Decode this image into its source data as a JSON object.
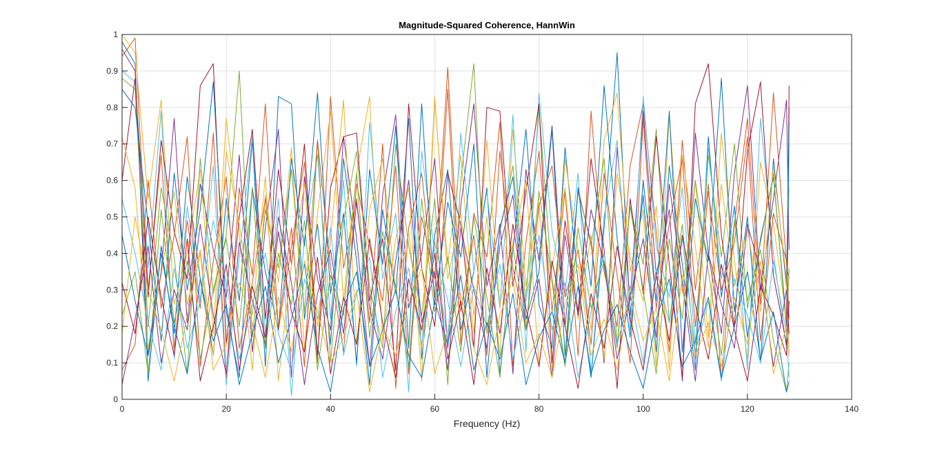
{
  "chart_data": {
    "type": "line",
    "title": "Magnitude-Squared Coherence, HannWin",
    "xlabel": "Frequency (Hz)",
    "ylabel": "",
    "xlim": [
      0,
      140
    ],
    "ylim": [
      0,
      1
    ],
    "grid": true,
    "legend": "none",
    "x_ticks": [
      0,
      20,
      40,
      60,
      80,
      100,
      120,
      140
    ],
    "y_ticks": [
      0,
      0.1,
      0.2,
      0.3,
      0.4,
      0.5,
      0.6,
      0.7,
      0.8,
      0.9,
      1
    ],
    "x_tick_labels": [
      "0",
      "20",
      "40",
      "60",
      "80",
      "100",
      "120",
      "140"
    ],
    "y_tick_labels": [
      "0",
      "0.1",
      "0.2",
      "0.3",
      "0.4",
      "0.5",
      "0.6",
      "0.7",
      "0.8",
      "0.9",
      "1"
    ],
    "x": [
      0,
      2.5,
      5,
      7.5,
      10,
      12.5,
      15,
      17.5,
      20,
      22.5,
      25,
      27.5,
      30,
      32.5,
      35,
      37.5,
      40,
      42.5,
      45,
      47.5,
      50,
      52.5,
      55,
      57.5,
      60,
      62.5,
      65,
      67.5,
      70,
      72.5,
      75,
      77.5,
      80,
      82.5,
      85,
      87.5,
      90,
      92.5,
      95,
      97.5,
      100,
      102.5,
      105,
      107.5,
      110,
      112.5,
      115,
      117.5,
      120,
      122.5,
      125,
      127.5,
      128
    ],
    "series": [
      {
        "color": "#0072BD",
        "values": [
          0.98,
          0.92,
          0.05,
          0.42,
          0.18,
          0.61,
          0.33,
          0.12,
          0.55,
          0.27,
          0.71,
          0.09,
          0.83,
          0.81,
          0.22,
          0.48,
          0.15,
          0.66,
          0.38,
          0.04,
          0.52,
          0.29,
          0.77,
          0.11,
          0.45,
          0.63,
          0.19,
          0.35,
          0.58,
          0.07,
          0.41,
          0.74,
          0.26,
          0.14,
          0.69,
          0.32,
          0.06,
          0.47,
          0.95,
          0.23,
          0.56,
          0.13,
          0.64,
          0.37,
          0.08,
          0.72,
          0.28,
          0.53,
          0.17,
          0.44,
          0.61,
          0.21,
          0.8
        ]
      },
      {
        "color": "#D95319",
        "values": [
          0.94,
          0.99,
          0.3,
          0.67,
          0.14,
          0.49,
          0.25,
          0.73,
          0.06,
          0.58,
          0.34,
          0.81,
          0.19,
          0.42,
          0.65,
          0.1,
          0.83,
          0.36,
          0.55,
          0.21,
          0.7,
          0.03,
          0.47,
          0.62,
          0.28,
          0.85,
          0.15,
          0.51,
          0.39,
          0.76,
          0.09,
          0.43,
          0.68,
          0.24,
          0.57,
          0.12,
          0.79,
          0.35,
          0.2,
          0.64,
          0.81,
          0.46,
          0.13,
          0.71,
          0.3,
          0.59,
          0.05,
          0.48,
          0.77,
          0.26,
          0.84,
          0.37,
          0.33
        ]
      },
      {
        "color": "#EDB120",
        "values": [
          1.0,
          0.95,
          0.55,
          0.82,
          0.26,
          0.4,
          0.63,
          0.18,
          0.77,
          0.45,
          0.08,
          0.56,
          0.32,
          0.69,
          0.14,
          0.51,
          0.79,
          0.27,
          0.62,
          0.83,
          0.16,
          0.44,
          0.58,
          0.05,
          0.82,
          0.37,
          0.67,
          0.23,
          0.5,
          0.12,
          0.74,
          0.31,
          0.54,
          0.08,
          0.66,
          0.41,
          0.19,
          0.71,
          0.84,
          0.35,
          0.52,
          0.09,
          0.78,
          0.29,
          0.6,
          0.17,
          0.73,
          0.38,
          0.11,
          0.65,
          0.48,
          0.22,
          0.58
        ]
      },
      {
        "color": "#7E2F8E",
        "values": [
          0.96,
          0.9,
          0.12,
          0.35,
          0.77,
          0.21,
          0.59,
          0.41,
          0.28,
          0.67,
          0.13,
          0.47,
          0.74,
          0.06,
          0.61,
          0.33,
          0.19,
          0.72,
          0.44,
          0.09,
          0.56,
          0.78,
          0.25,
          0.4,
          0.66,
          0.14,
          0.53,
          0.81,
          0.31,
          0.48,
          0.07,
          0.63,
          0.38,
          0.75,
          0.2,
          0.57,
          0.43,
          0.1,
          0.69,
          0.27,
          0.79,
          0.34,
          0.52,
          0.05,
          0.73,
          0.4,
          0.18,
          0.62,
          0.86,
          0.3,
          0.55,
          0.82,
          0.41
        ]
      },
      {
        "color": "#77AC30",
        "values": [
          0.88,
          0.85,
          0.2,
          0.58,
          0.39,
          0.07,
          0.66,
          0.29,
          0.45,
          0.9,
          0.17,
          0.52,
          0.36,
          0.63,
          0.24,
          0.71,
          0.1,
          0.49,
          0.68,
          0.31,
          0.14,
          0.7,
          0.42,
          0.23,
          0.55,
          0.04,
          0.6,
          0.92,
          0.18,
          0.46,
          0.64,
          0.27,
          0.8,
          0.32,
          0.09,
          0.58,
          0.42,
          0.66,
          0.15,
          0.53,
          0.37,
          0.74,
          0.21,
          0.48,
          0.11,
          0.67,
          0.39,
          0.7,
          0.25,
          0.43,
          0.62,
          0.19,
          0.36
        ]
      },
      {
        "color": "#4DBEEE",
        "values": [
          0.9,
          0.87,
          0.36,
          0.79,
          0.11,
          0.53,
          0.27,
          0.64,
          0.04,
          0.39,
          0.72,
          0.18,
          0.55,
          0.01,
          0.44,
          0.67,
          0.22,
          0.6,
          0.09,
          0.76,
          0.33,
          0.51,
          0.02,
          0.68,
          0.4,
          0.16,
          0.73,
          0.35,
          0.57,
          0.25,
          0.78,
          0.13,
          0.84,
          0.46,
          0.29,
          0.62,
          0.07,
          0.5,
          0.71,
          0.19,
          0.83,
          0.42,
          0.28,
          0.58,
          0.15,
          0.69,
          0.33,
          0.52,
          0.08,
          0.77,
          0.4,
          0.14,
          0.7
        ]
      },
      {
        "color": "#A2142F",
        "values": [
          0.6,
          0.88,
          0.28,
          0.71,
          0.46,
          0.33,
          0.86,
          0.92,
          0.15,
          0.5,
          0.74,
          0.22,
          0.63,
          0.37,
          0.7,
          0.12,
          0.58,
          0.72,
          0.73,
          0.27,
          0.44,
          0.08,
          0.81,
          0.36,
          0.2,
          0.62,
          0.48,
          0.14,
          0.8,
          0.79,
          0.31,
          0.57,
          0.81,
          0.1,
          0.49,
          0.24,
          0.66,
          0.41,
          0.03,
          0.55,
          0.29,
          0.72,
          0.37,
          0.06,
          0.81,
          0.92,
          0.45,
          0.2,
          0.68,
          0.87,
          0.34,
          0.15,
          0.86
        ]
      },
      {
        "color": "#0072BD",
        "values": [
          0.85,
          0.8,
          0.48,
          0.16,
          0.62,
          0.3,
          0.52,
          0.87,
          0.24,
          0.06,
          0.58,
          0.35,
          0.19,
          0.66,
          0.42,
          0.84,
          0.29,
          0.51,
          0.1,
          0.63,
          0.37,
          0.75,
          0.14,
          0.81,
          0.26,
          0.54,
          0.39,
          0.7,
          0.06,
          0.47,
          0.61,
          0.22,
          0.35,
          0.74,
          0.12,
          0.58,
          0.31,
          0.86,
          0.44,
          0.17,
          0.6,
          0.27,
          0.79,
          0.13,
          0.55,
          0.38,
          0.88,
          0.24,
          0.5,
          0.1,
          0.66,
          0.31,
          0.76
        ]
      },
      {
        "color": "#D95319",
        "values": [
          0.08,
          0.15,
          0.6,
          0.25,
          0.45,
          0.72,
          0.09,
          0.38,
          0.61,
          0.14,
          0.32,
          0.55,
          0.2,
          0.47,
          0.09,
          0.71,
          0.36,
          0.13,
          0.59,
          0.42,
          0.27,
          0.64,
          0.07,
          0.5,
          0.33,
          0.91,
          0.24,
          0.45,
          0.12,
          0.68,
          0.36,
          0.19,
          0.53,
          0.64,
          0.28,
          0.41,
          0.15,
          0.62,
          0.34,
          0.1,
          0.77,
          0.25,
          0.48,
          0.66,
          0.2,
          0.57,
          0.3,
          0.43,
          0.72,
          0.16,
          0.51,
          0.38,
          0.22
        ]
      },
      {
        "color": "#EDB120",
        "values": [
          0.72,
          0.58,
          0.14,
          0.34,
          0.57,
          0.26,
          0.41,
          0.12,
          0.68,
          0.48,
          0.23,
          0.61,
          0.05,
          0.37,
          0.59,
          0.2,
          0.44,
          0.82,
          0.15,
          0.52,
          0.66,
          0.29,
          0.46,
          0.13,
          0.83,
          0.33,
          0.51,
          0.18,
          0.71,
          0.26,
          0.43,
          0.6,
          0.09,
          0.36,
          0.58,
          0.22,
          0.45,
          0.11,
          0.62,
          0.39,
          0.27,
          0.53,
          0.08,
          0.67,
          0.42,
          0.14,
          0.59,
          0.31,
          0.47,
          0.24,
          0.64,
          0.33,
          0.12
        ]
      },
      {
        "color": "#7E2F8E",
        "values": [
          0.04,
          0.22,
          0.42,
          0.1,
          0.3,
          0.19,
          0.48,
          0.23,
          0.07,
          0.43,
          0.27,
          0.15,
          0.5,
          0.32,
          0.04,
          0.29,
          0.41,
          0.18,
          0.54,
          0.25,
          0.11,
          0.38,
          0.6,
          0.21,
          0.35,
          0.08,
          0.47,
          0.3,
          0.14,
          0.42,
          0.56,
          0.19,
          0.33,
          0.06,
          0.45,
          0.23,
          0.52,
          0.37,
          0.11,
          0.28,
          0.44,
          0.17,
          0.59,
          0.32,
          0.05,
          0.4,
          0.26,
          0.14,
          0.48,
          0.35,
          0.09,
          0.3,
          0.18
        ]
      },
      {
        "color": "#77AC30",
        "values": [
          0.23,
          0.35,
          0.07,
          0.52,
          0.21,
          0.38,
          0.11,
          0.3,
          0.44,
          0.2,
          0.58,
          0.14,
          0.4,
          0.26,
          0.49,
          0.08,
          0.34,
          0.23,
          0.62,
          0.17,
          0.46,
          0.31,
          0.09,
          0.55,
          0.24,
          0.39,
          0.13,
          0.5,
          0.28,
          0.06,
          0.42,
          0.19,
          0.57,
          0.33,
          0.1,
          0.47,
          0.25,
          0.38,
          0.14,
          0.53,
          0.3,
          0.07,
          0.44,
          0.22,
          0.6,
          0.35,
          0.12,
          0.49,
          0.27,
          0.41,
          0.16,
          0.02,
          0.1
        ]
      },
      {
        "color": "#4DBEEE",
        "values": [
          0.55,
          0.4,
          0.21,
          0.08,
          0.36,
          0.14,
          0.27,
          0.49,
          0.32,
          0.11,
          0.26,
          0.4,
          0.18,
          0.08,
          0.33,
          0.22,
          0.47,
          0.12,
          0.29,
          0.39,
          0.06,
          0.24,
          0.36,
          0.15,
          0.43,
          0.27,
          0.09,
          0.31,
          0.2,
          0.37,
          0.11,
          0.28,
          0.45,
          0.19,
          0.32,
          0.06,
          0.24,
          0.4,
          0.15,
          0.29,
          0.1,
          0.36,
          0.21,
          0.44,
          0.13,
          0.27,
          0.05,
          0.33,
          0.23,
          0.1,
          0.38,
          0.18,
          0.06
        ]
      },
      {
        "color": "#A2142F",
        "values": [
          0.32,
          0.18,
          0.5,
          0.28,
          0.12,
          0.44,
          0.05,
          0.2,
          0.37,
          0.08,
          0.31,
          0.17,
          0.46,
          0.24,
          0.13,
          0.39,
          0.07,
          0.28,
          0.15,
          0.44,
          0.21,
          0.06,
          0.33,
          0.19,
          0.4,
          0.11,
          0.27,
          0.04,
          0.36,
          0.18,
          0.48,
          0.25,
          0.09,
          0.38,
          0.2,
          0.03,
          0.29,
          0.14,
          0.42,
          0.22,
          0.08,
          0.34,
          0.16,
          0.45,
          0.26,
          0.11,
          0.37,
          0.19,
          0.05,
          0.31,
          0.23,
          0.12,
          0.27
        ]
      },
      {
        "color": "#0072BD",
        "values": [
          0.45,
          0.27,
          0.12,
          0.4,
          0.2,
          0.07,
          0.33,
          0.16,
          0.26,
          0.04,
          0.18,
          0.31,
          0.1,
          0.22,
          0.37,
          0.14,
          0.02,
          0.25,
          0.35,
          0.09,
          0.19,
          0.3,
          0.12,
          0.06,
          0.27,
          0.15,
          0.34,
          0.08,
          0.21,
          0.11,
          0.29,
          0.04,
          0.17,
          0.24,
          0.1,
          0.31,
          0.07,
          0.19,
          0.26,
          0.13,
          0.03,
          0.22,
          0.33,
          0.09,
          0.16,
          0.28,
          0.06,
          0.2,
          0.35,
          0.11,
          0.24,
          0.02,
          0.05
        ]
      },
      {
        "color": "#EDB120",
        "values": [
          0.18,
          0.5,
          0.3,
          0.19,
          0.05,
          0.23,
          0.4,
          0.08,
          0.15,
          0.32,
          0.21,
          0.06,
          0.28,
          0.13,
          0.38,
          0.24,
          0.1,
          0.17,
          0.3,
          0.02,
          0.2,
          0.12,
          0.27,
          0.36,
          0.07,
          0.19,
          0.29,
          0.14,
          0.04,
          0.23,
          0.33,
          0.1,
          0.18,
          0.06,
          0.26,
          0.37,
          0.12,
          0.22,
          0.08,
          0.31,
          0.16,
          0.25,
          0.05,
          0.34,
          0.12,
          0.21,
          0.09,
          0.28,
          0.15,
          0.38,
          0.07,
          0.2,
          0.13
        ]
      }
    ]
  }
}
